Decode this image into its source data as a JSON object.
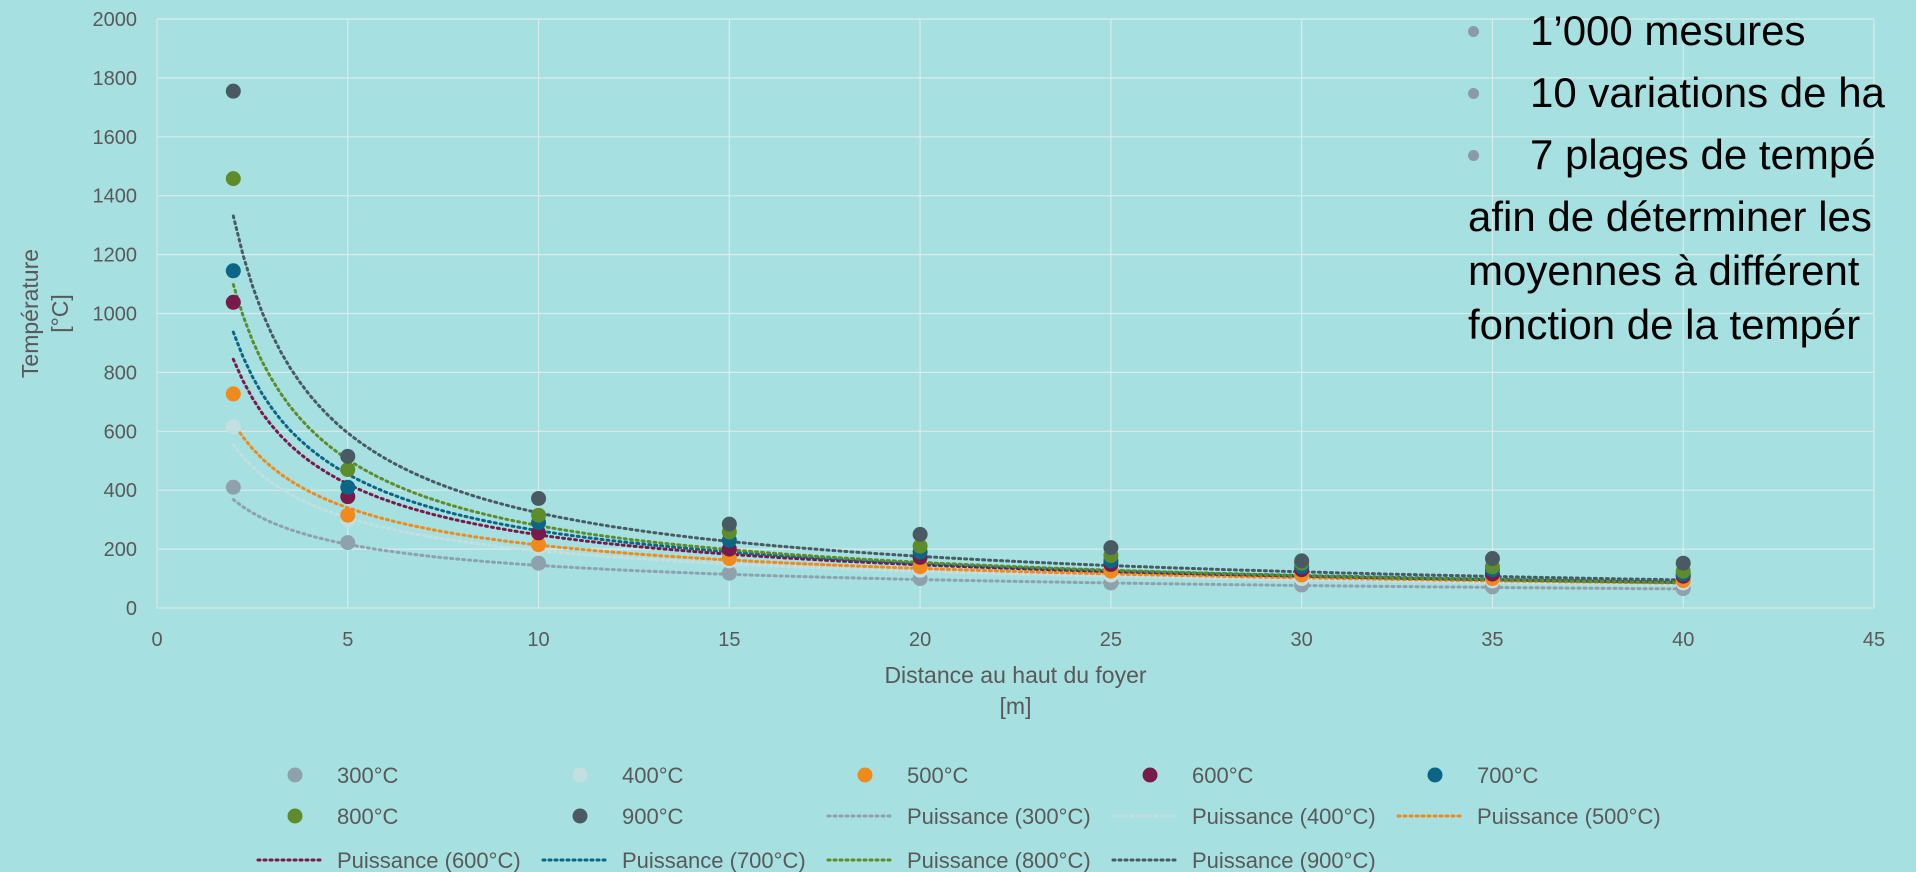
{
  "side_panel": {
    "bullets": [
      "1’000 mesures",
      "10 variations de ha",
      "7 plages de tempé"
    ],
    "paragraph_lines": [
      "afin de déterminer les",
      "moyennes à différent",
      "fonction de la tempér"
    ]
  },
  "chart_data": {
    "type": "scatter",
    "xlabel": "Distance au haut du foyer",
    "xlabel_unit": "[m]",
    "ylabel": "Température",
    "ylabel_unit": "[°C]",
    "xlim": [
      0,
      45
    ],
    "ylim": [
      0,
      2000
    ],
    "xticks": [
      0,
      5,
      10,
      15,
      20,
      25,
      30,
      35,
      40,
      45
    ],
    "yticks": [
      0,
      200,
      400,
      600,
      800,
      1000,
      1200,
      1400,
      1600,
      1800,
      2000
    ],
    "grid": true,
    "legend_position": "bottom",
    "x": [
      2,
      5,
      10,
      15,
      20,
      25,
      30,
      35,
      40
    ],
    "series": [
      {
        "name": "300°C",
        "color": "#8ea1ad",
        "values": [
          410,
          222,
          152,
          118,
          100,
          85,
          78,
          72,
          66
        ],
        "trend": {
          "name": "Puissance (300°C)",
          "a": 550,
          "b": -0.58
        }
      },
      {
        "name": "400°C",
        "color": "#c4dfe2",
        "values": [
          615,
          300,
          205,
          160,
          128,
          112,
          100,
          92,
          85
        ],
        "trend": {
          "name": "Puissance (400°C)",
          "a": 870,
          "b": -0.65
        }
      },
      {
        "name": "500°C",
        "color": "#f08a1c",
        "values": [
          727,
          315,
          215,
          168,
          140,
          125,
          112,
          100,
          93
        ],
        "trend": {
          "name": "Puissance (500°C)",
          "a": 1000,
          "b": -0.67
        }
      },
      {
        "name": "600°C",
        "color": "#7a1a4a",
        "values": [
          1038,
          378,
          255,
          200,
          172,
          148,
          130,
          115,
          108
        ],
        "trend": {
          "name": "Puissance (600°C)",
          "a": 1430,
          "b": -0.76
        }
      },
      {
        "name": "700°C",
        "color": "#0b6587",
        "values": [
          1145,
          410,
          290,
          230,
          190,
          160,
          140,
          130,
          115
        ],
        "trend": {
          "name": "Puissance (700°C)",
          "a": 1620,
          "b": -0.79
        }
      },
      {
        "name": "800°C",
        "color": "#5f8c2a",
        "values": [
          1458,
          470,
          315,
          258,
          210,
          178,
          152,
          140,
          125
        ],
        "trend": {
          "name": "Puissance (800°C)",
          "a": 1980,
          "b": -0.85
        }
      },
      {
        "name": "900°C",
        "color": "#4a5a63",
        "values": [
          1755,
          515,
          372,
          285,
          250,
          205,
          160,
          168,
          152
        ],
        "trend": {
          "name": "Puissance (900°C)",
          "a": 2450,
          "b": -0.88
        }
      }
    ]
  }
}
